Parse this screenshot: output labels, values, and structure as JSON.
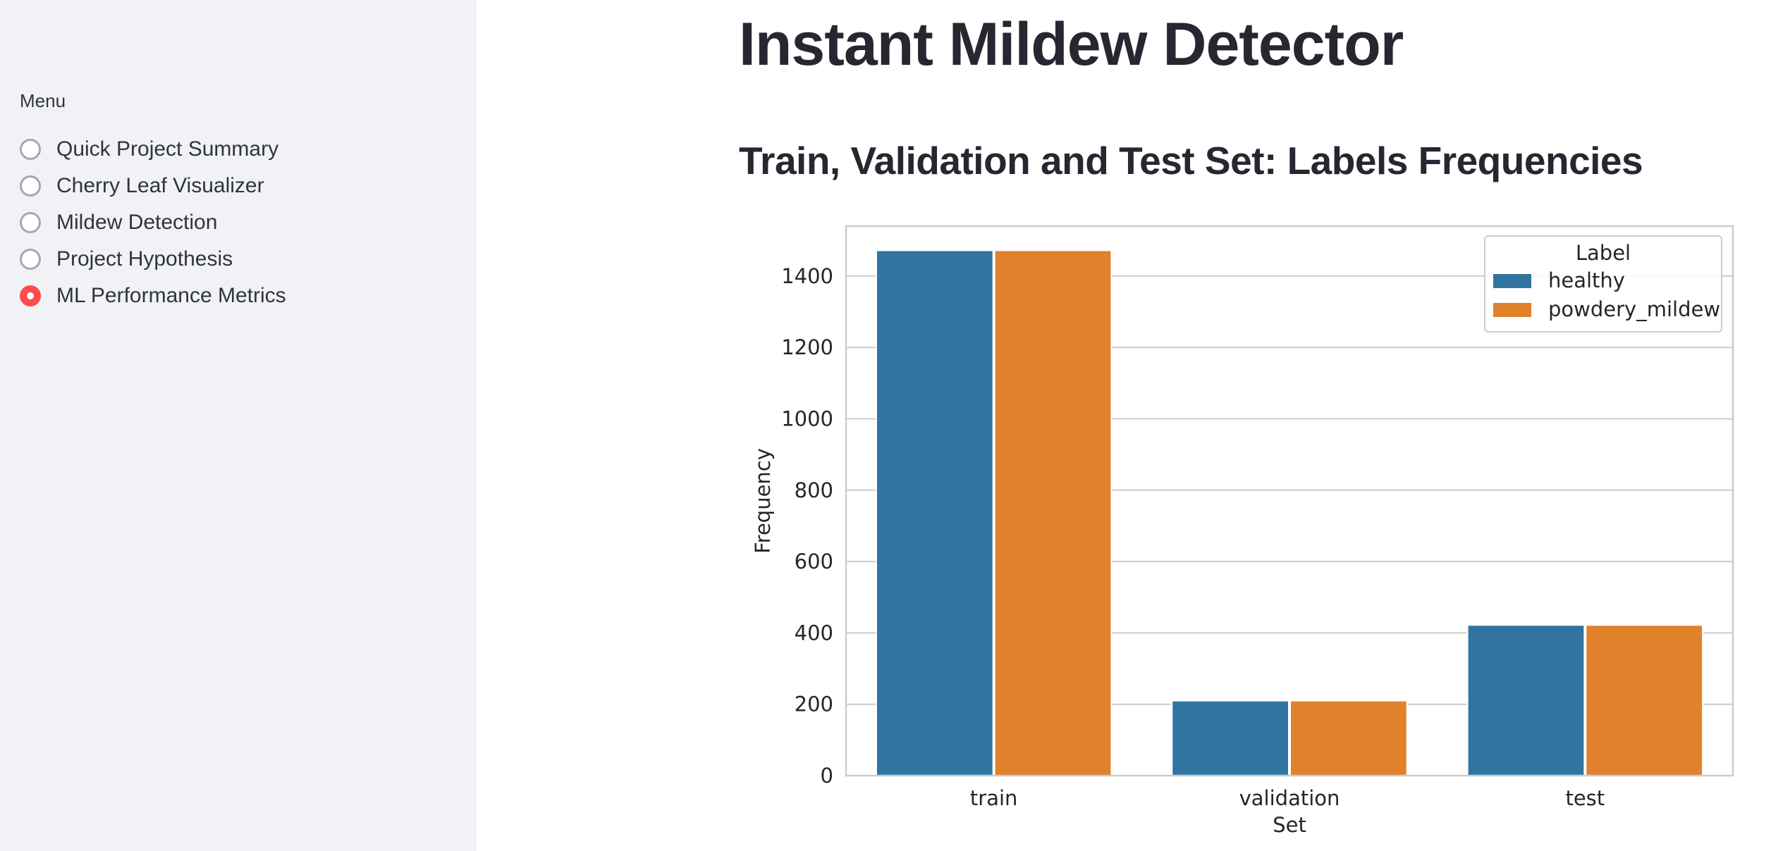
{
  "sidebar": {
    "menu_label": "Menu",
    "items": [
      {
        "label": "Quick Project Summary",
        "selected": false
      },
      {
        "label": "Cherry Leaf Visualizer",
        "selected": false
      },
      {
        "label": "Mildew Detection",
        "selected": false
      },
      {
        "label": "Project Hypothesis",
        "selected": false
      },
      {
        "label": "ML Performance Metrics",
        "selected": true
      }
    ]
  },
  "main": {
    "title": "Instant Mildew Detector",
    "section_title": "Train, Validation and Test Set: Labels Frequencies"
  },
  "colors": {
    "accent": "#ff4b4b",
    "sidebar_bg": "#f0f2f6",
    "series_healthy": "#3274a1",
    "series_powdery_mildew": "#e1812c"
  },
  "chart_data": {
    "type": "bar",
    "categories": [
      "train",
      "validation",
      "test"
    ],
    "series": [
      {
        "name": "healthy",
        "values": [
          1472,
          210,
          422
        ]
      },
      {
        "name": "powdery_mildew",
        "values": [
          1472,
          210,
          422
        ]
      }
    ],
    "xlabel": "Set",
    "ylabel": "Frequency",
    "ylim": [
      0,
      1540
    ],
    "yticks": [
      0,
      200,
      400,
      600,
      800,
      1000,
      1200,
      1400
    ],
    "legend_title": "Label",
    "legend_position": "top-right",
    "grid": true
  }
}
